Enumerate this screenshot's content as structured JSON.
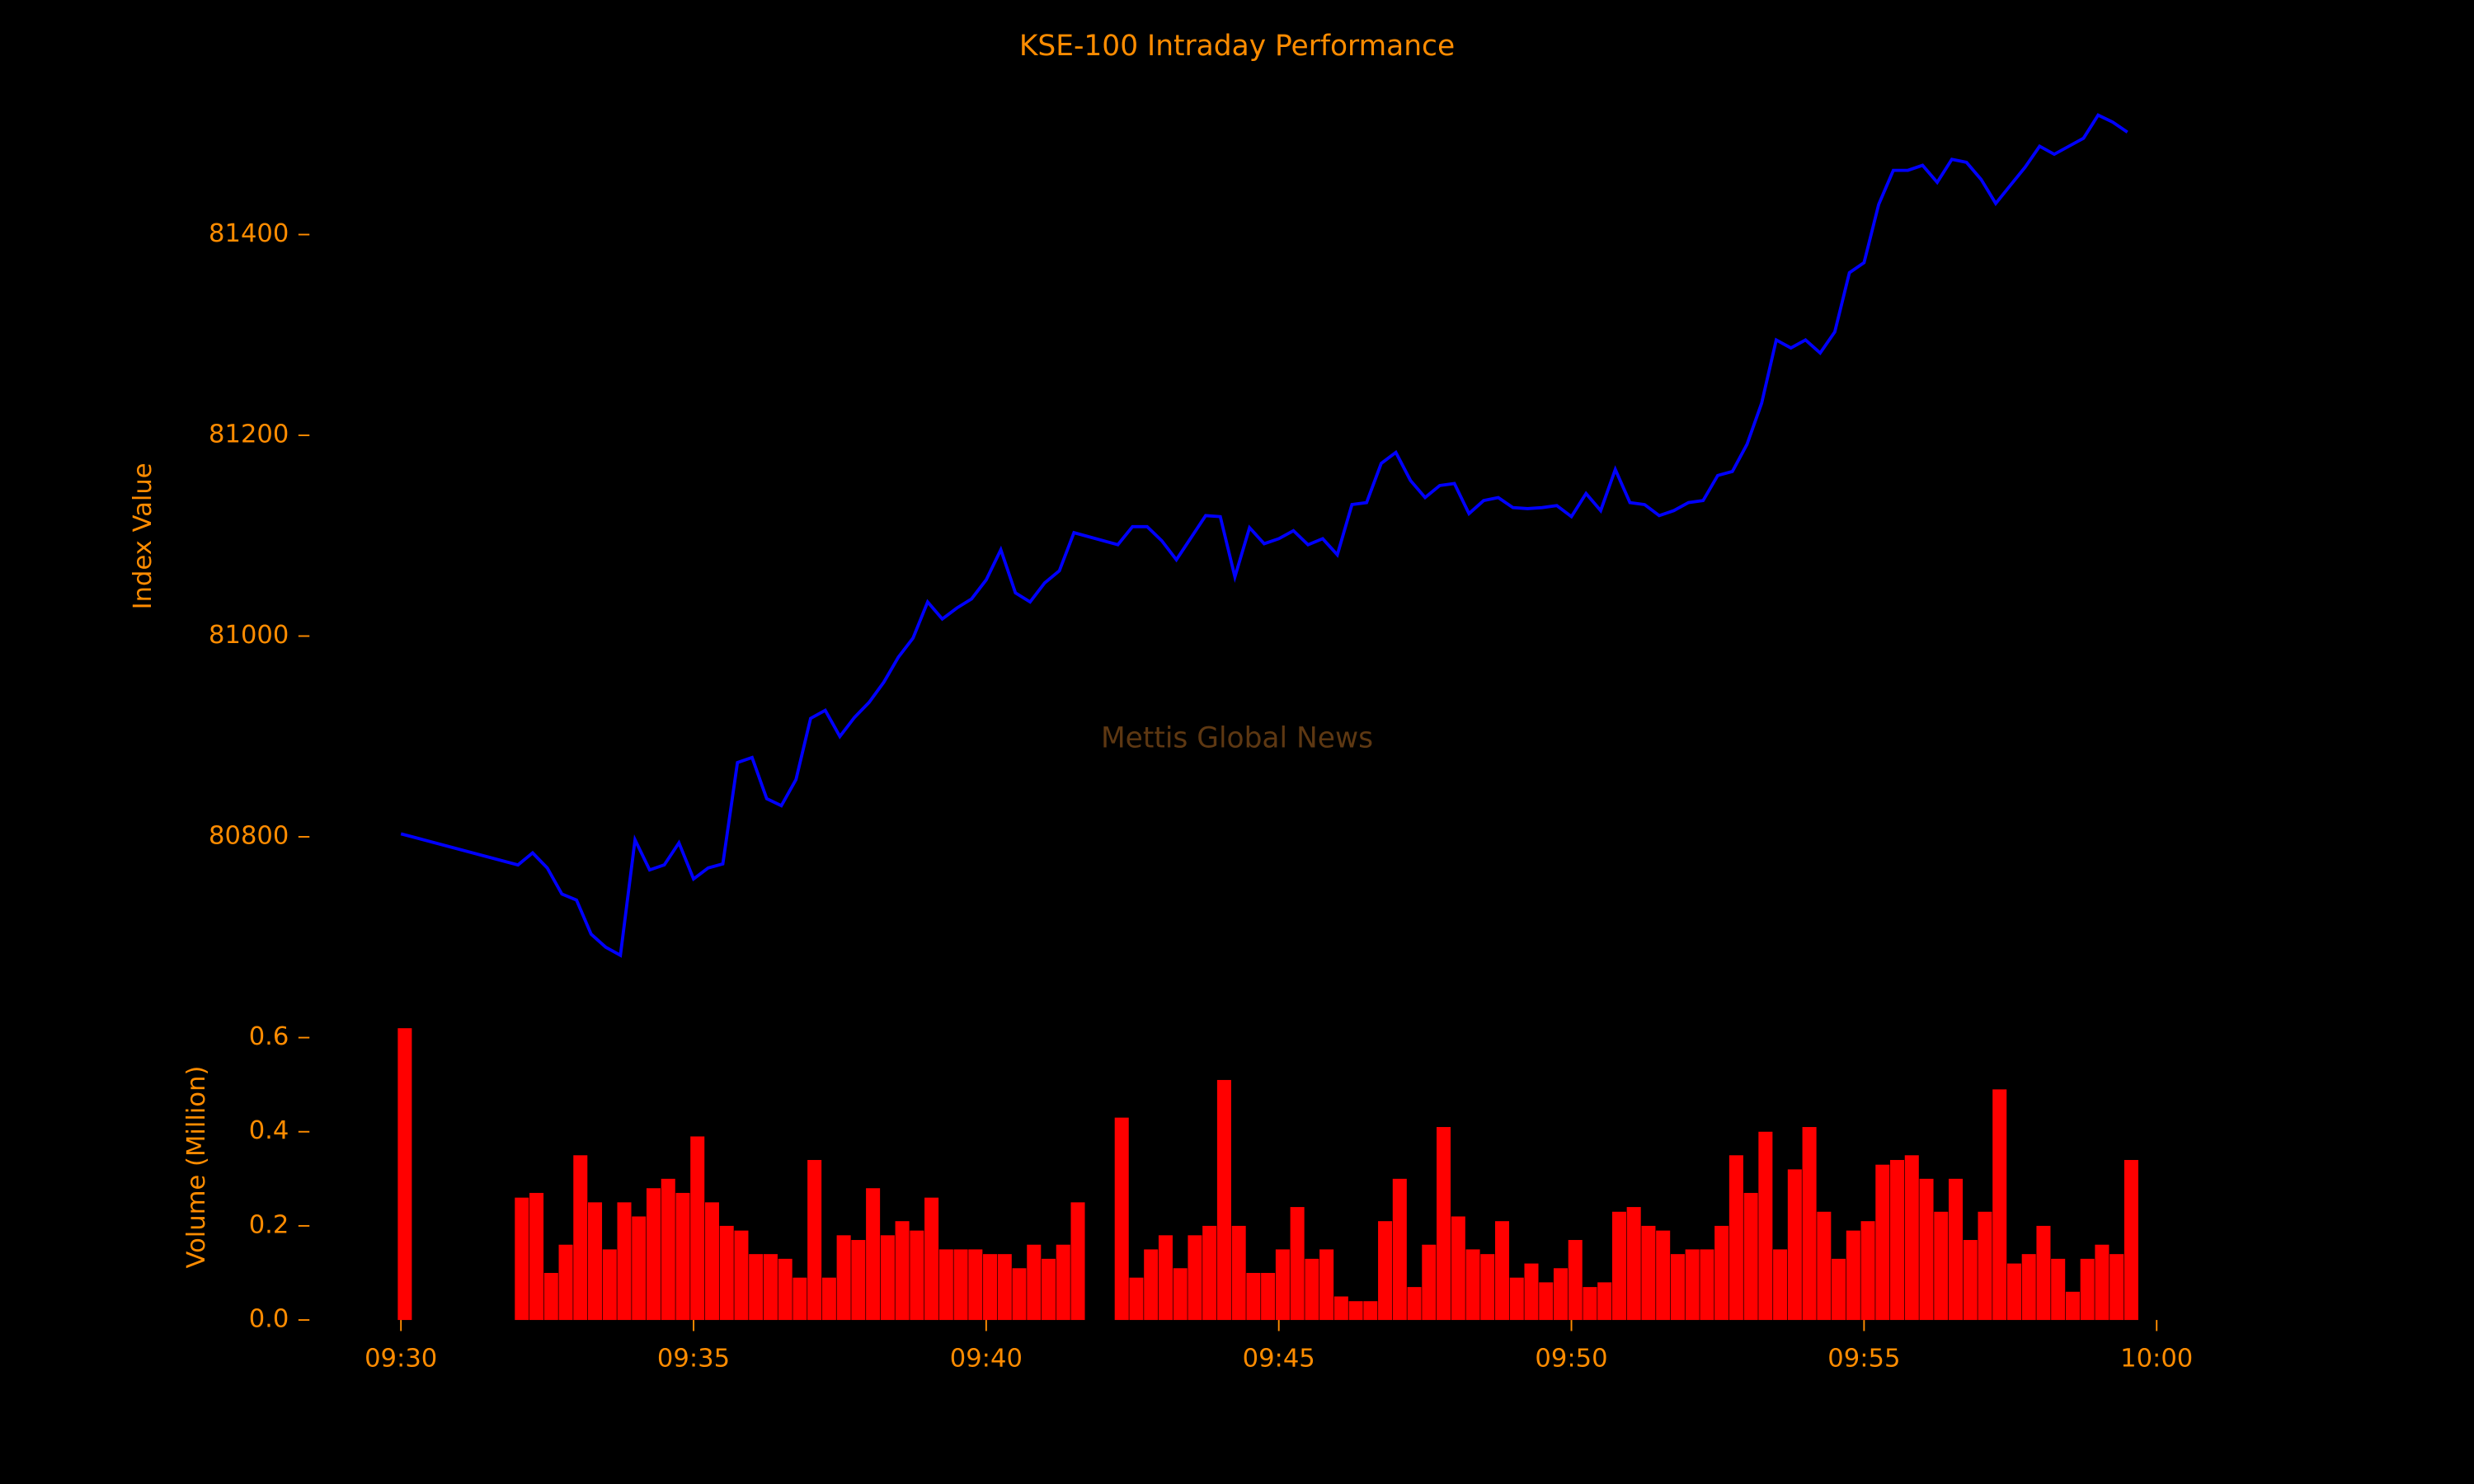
{
  "chart_data": [
    {
      "type": "line",
      "title": "KSE-100 Intraday Performance",
      "ylabel": "Index Value",
      "watermark": "Mettis Global News",
      "color": "#0000ff",
      "xlim": [
        "09:30",
        "10:00"
      ],
      "ylim": [
        80680,
        81530
      ],
      "yticks": [
        80800,
        81000,
        81200,
        81400
      ],
      "x": [
        "09:30:00",
        "09:32:00",
        "09:32:15",
        "09:32:30",
        "09:32:45",
        "09:33:00",
        "09:33:15",
        "09:33:30",
        "09:33:45",
        "09:34:00",
        "09:34:15",
        "09:34:30",
        "09:34:45",
        "09:35:00",
        "09:35:15",
        "09:35:30",
        "09:35:45",
        "09:36:00",
        "09:36:15",
        "09:36:30",
        "09:36:45",
        "09:37:00",
        "09:37:15",
        "09:37:30",
        "09:37:45",
        "09:38:00",
        "09:38:15",
        "09:38:30",
        "09:38:45",
        "09:39:00",
        "09:39:15",
        "09:39:30",
        "09:39:45",
        "09:40:00",
        "09:40:15",
        "09:40:30",
        "09:40:45",
        "09:41:00",
        "09:41:15",
        "09:41:30",
        "09:42:15",
        "09:42:30",
        "09:42:45",
        "09:43:00",
        "09:43:15",
        "09:43:30",
        "09:43:45",
        "09:44:00",
        "09:44:15",
        "09:44:30",
        "09:44:45",
        "09:45:00",
        "09:45:15",
        "09:45:30",
        "09:45:45",
        "09:46:00",
        "09:46:15",
        "09:46:30",
        "09:46:45",
        "09:47:00",
        "09:47:15",
        "09:47:30",
        "09:47:45",
        "09:48:00",
        "09:48:15",
        "09:48:30",
        "09:48:45",
        "09:49:00",
        "09:49:15",
        "09:49:30",
        "09:49:45",
        "09:50:00",
        "09:50:15",
        "09:50:30",
        "09:50:45",
        "09:51:00",
        "09:51:15",
        "09:51:30",
        "09:51:45",
        "09:52:00",
        "09:52:15",
        "09:52:30",
        "09:52:45",
        "09:53:00",
        "09:53:15",
        "09:53:30",
        "09:53:45",
        "09:54:00",
        "09:54:15",
        "09:54:30",
        "09:54:45",
        "09:55:00",
        "09:55:15",
        "09:55:30",
        "09:55:45",
        "09:56:00",
        "09:56:15",
        "09:56:30",
        "09:56:45",
        "09:57:00",
        "09:57:15",
        "09:57:30",
        "09:57:45",
        "09:58:00",
        "09:58:15",
        "09:58:30",
        "09:58:45",
        "09:59:00",
        "09:59:15",
        "09:59:30"
      ],
      "values": [
        80803,
        80772,
        80784,
        80769,
        80743,
        80737,
        80703,
        80690,
        80682,
        80797,
        80767,
        80772,
        80794,
        80758,
        80769,
        80773,
        80874,
        80879,
        80838,
        80831,
        80857,
        80918,
        80926,
        80900,
        80919,
        80934,
        80954,
        80979,
        80998,
        81034,
        81017,
        81028,
        81037,
        81056,
        81086,
        81043,
        81034,
        81053,
        81065,
        81103,
        81091,
        81109,
        81109,
        81095,
        81076,
        81098,
        81120,
        81119,
        81059,
        81108,
        81092,
        81097,
        81105,
        81091,
        81097,
        81081,
        81131,
        81133,
        81172,
        81183,
        81155,
        81138,
        81150,
        81152,
        81122,
        81135,
        81138,
        81128,
        81127,
        81128,
        81130,
        81119,
        81142,
        81125,
        81166,
        81133,
        81131,
        81120,
        81125,
        81133,
        81135,
        81160,
        81164,
        81191,
        81232,
        81295,
        81287,
        81295,
        81282,
        81303,
        81362,
        81372,
        81430,
        81464,
        81464,
        81469,
        81452,
        81475,
        81472,
        81455,
        81431,
        81449,
        81467,
        81488,
        81480,
        81488,
        81496,
        81519,
        81512,
        81502
      ]
    },
    {
      "type": "bar",
      "ylabel": "Volume (Million)",
      "color": "#ff0000",
      "xlim": [
        "09:30",
        "10:00"
      ],
      "xticks": [
        "09:30",
        "09:35",
        "09:40",
        "09:45",
        "09:50",
        "09:55",
        "10:00"
      ],
      "ylim": [
        0,
        0.63
      ],
      "yticks": [
        {
          "value": 0,
          "label": "0.0"
        },
        0.2,
        0.4,
        0.6
      ],
      "x": [
        "09:30:00",
        "09:32:00",
        "09:32:15",
        "09:32:30",
        "09:32:45",
        "09:33:00",
        "09:33:15",
        "09:33:30",
        "09:33:45",
        "09:34:00",
        "09:34:15",
        "09:34:30",
        "09:34:45",
        "09:35:00",
        "09:35:15",
        "09:35:30",
        "09:35:45",
        "09:36:00",
        "09:36:15",
        "09:36:30",
        "09:36:45",
        "09:37:00",
        "09:37:15",
        "09:37:30",
        "09:37:45",
        "09:38:00",
        "09:38:15",
        "09:38:30",
        "09:38:45",
        "09:39:00",
        "09:39:15",
        "09:39:30",
        "09:39:45",
        "09:40:00",
        "09:40:15",
        "09:40:30",
        "09:40:45",
        "09:41:00",
        "09:41:15",
        "09:41:30",
        "09:42:15",
        "09:42:30",
        "09:42:45",
        "09:43:00",
        "09:43:15",
        "09:43:30",
        "09:43:45",
        "09:44:00",
        "09:44:15",
        "09:44:30",
        "09:44:45",
        "09:45:00",
        "09:45:15",
        "09:45:30",
        "09:45:45",
        "09:46:00",
        "09:46:15",
        "09:46:30",
        "09:46:45",
        "09:47:00",
        "09:47:15",
        "09:47:30",
        "09:47:45",
        "09:48:00",
        "09:48:15",
        "09:48:30",
        "09:48:45",
        "09:49:00",
        "09:49:15",
        "09:49:30",
        "09:49:45",
        "09:50:00",
        "09:50:15",
        "09:50:30",
        "09:50:45",
        "09:51:00",
        "09:51:15",
        "09:51:30",
        "09:51:45",
        "09:52:00",
        "09:52:15",
        "09:52:30",
        "09:52:45",
        "09:53:00",
        "09:53:15",
        "09:53:30",
        "09:53:45",
        "09:54:00",
        "09:54:15",
        "09:54:30",
        "09:54:45",
        "09:55:00",
        "09:55:15",
        "09:55:30",
        "09:55:45",
        "09:56:00",
        "09:56:15",
        "09:56:30",
        "09:56:45",
        "09:57:00",
        "09:57:15",
        "09:57:30",
        "09:57:45",
        "09:58:00",
        "09:58:15",
        "09:58:30",
        "09:58:45",
        "09:59:00",
        "09:59:15",
        "09:59:30"
      ],
      "values": [
        0.62,
        0.26,
        0.27,
        0.1,
        0.16,
        0.35,
        0.25,
        0.15,
        0.25,
        0.22,
        0.28,
        0.3,
        0.27,
        0.39,
        0.25,
        0.2,
        0.19,
        0.14,
        0.14,
        0.13,
        0.09,
        0.34,
        0.09,
        0.18,
        0.17,
        0.28,
        0.18,
        0.21,
        0.19,
        0.26,
        0.15,
        0.15,
        0.15,
        0.14,
        0.14,
        0.11,
        0.16,
        0.13,
        0.16,
        0.25,
        0.43,
        0.09,
        0.15,
        0.18,
        0.11,
        0.18,
        0.2,
        0.51,
        0.2,
        0.1,
        0.1,
        0.15,
        0.24,
        0.13,
        0.15,
        0.05,
        0.04,
        0.04,
        0.21,
        0.3,
        0.07,
        0.16,
        0.41,
        0.22,
        0.15,
        0.14,
        0.21,
        0.09,
        0.12,
        0.08,
        0.11,
        0.17,
        0.07,
        0.08,
        0.23,
        0.24,
        0.2,
        0.19,
        0.14,
        0.15,
        0.15,
        0.2,
        0.35,
        0.27,
        0.4,
        0.15,
        0.32,
        0.41,
        0.23,
        0.13,
        0.19,
        0.21,
        0.33,
        0.34,
        0.35,
        0.3,
        0.23,
        0.3,
        0.17,
        0.23,
        0.49,
        0.12,
        0.14,
        0.2,
        0.13,
        0.06,
        0.13,
        0.16,
        0.14,
        0.34
      ]
    }
  ]
}
